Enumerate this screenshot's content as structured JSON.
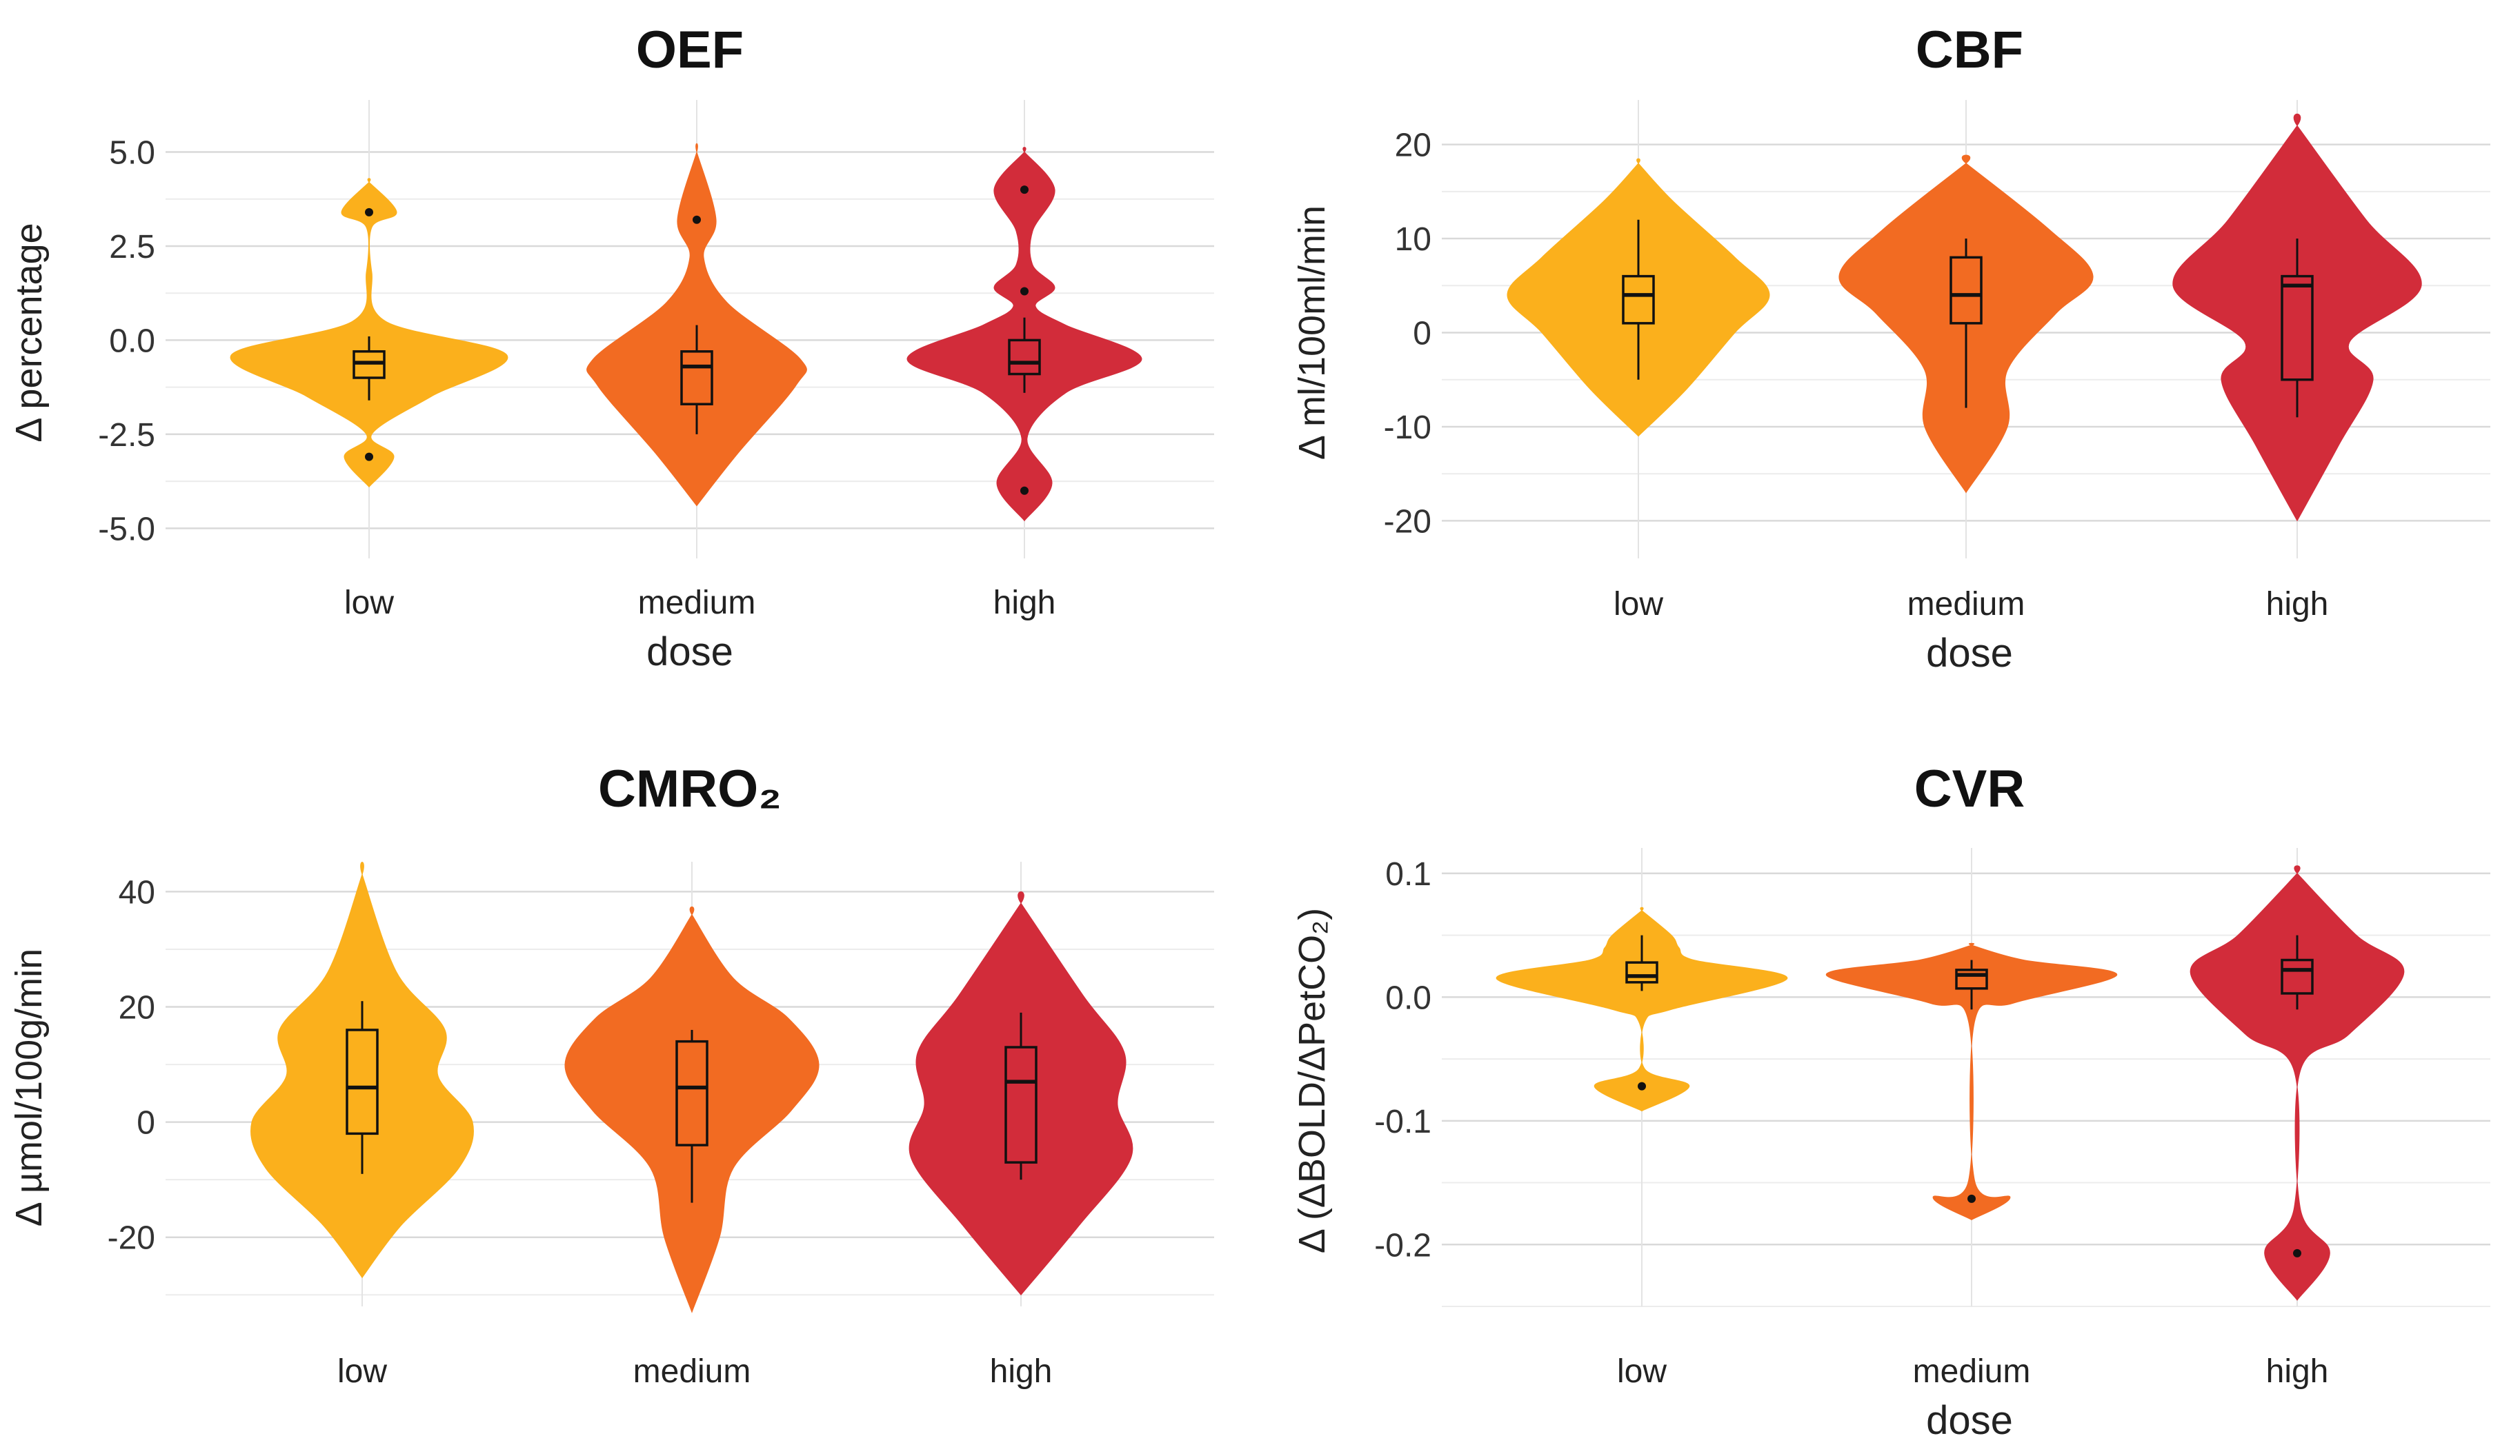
{
  "colors": {
    "low": "#FBB01C",
    "medium": "#F26B22",
    "high": "#D22C3A"
  },
  "chart_data": [
    {
      "type": "violin",
      "title": "OEF",
      "xlabel": "dose",
      "ylabel": "Δ percentage",
      "categories": [
        "low",
        "medium",
        "high"
      ],
      "ylim": [
        -5.8,
        6.2
      ],
      "yticks": [
        5.0,
        2.5,
        0.0,
        -2.5,
        -5.0
      ],
      "ytick_labels": [
        "5.0",
        "2.5",
        "0.0",
        "-2.5",
        "-5.0"
      ],
      "groups": [
        {
          "name": "low",
          "q1": -1.0,
          "median": -0.6,
          "q3": -0.3,
          "whisker_low": -1.6,
          "whisker_high": 0.1,
          "outliers": [
            3.4,
            -3.1
          ],
          "density": [
            [
              -3.9,
              0
            ],
            [
              -3.1,
              0.18
            ],
            [
              -2.5,
              0.02
            ],
            [
              -1.5,
              0.45
            ],
            [
              -0.4,
              1.0
            ],
            [
              0.5,
              0.12
            ],
            [
              1.8,
              0.02
            ],
            [
              3.0,
              0.02
            ],
            [
              3.4,
              0.2
            ],
            [
              4.2,
              0
            ]
          ]
        },
        {
          "name": "medium",
          "q1": -1.7,
          "median": -0.7,
          "q3": -0.3,
          "whisker_low": -2.5,
          "whisker_high": 0.4,
          "outliers": [
            3.2
          ],
          "density": [
            [
              -4.4,
              0
            ],
            [
              -3.0,
              0.3
            ],
            [
              -1.2,
              0.72
            ],
            [
              -0.5,
              0.75
            ],
            [
              1.0,
              0.22
            ],
            [
              2.2,
              0.05
            ],
            [
              3.2,
              0.14
            ],
            [
              5.0,
              0
            ]
          ]
        },
        {
          "name": "high",
          "q1": -0.9,
          "median": -0.6,
          "q3": 0.0,
          "whisker_low": -1.4,
          "whisker_high": 0.6,
          "outliers": [
            4.0,
            1.3,
            -4.0
          ],
          "density": [
            [
              -4.8,
              0
            ],
            [
              -3.8,
              0.2
            ],
            [
              -2.6,
              0.02
            ],
            [
              -1.4,
              0.3
            ],
            [
              -0.5,
              0.85
            ],
            [
              0.4,
              0.3
            ],
            [
              0.9,
              0.08
            ],
            [
              1.4,
              0.22
            ],
            [
              2.0,
              0.06
            ],
            [
              2.9,
              0.06
            ],
            [
              4.0,
              0.22
            ],
            [
              5.0,
              0
            ]
          ]
        }
      ]
    },
    {
      "type": "violin",
      "title": "CBF",
      "xlabel": "dose",
      "ylabel": "Δ ml/100ml/min",
      "categories": [
        "low",
        "medium",
        "high"
      ],
      "ylim": [
        -24,
        24
      ],
      "yticks": [
        20,
        10,
        0,
        -10,
        -20
      ],
      "ytick_labels": [
        "20",
        "10",
        "0",
        "-10",
        "-20"
      ],
      "groups": [
        {
          "name": "low",
          "q1": 1,
          "median": 4,
          "q3": 6,
          "whisker_low": -5,
          "whisker_high": 12,
          "outliers": [],
          "density": [
            [
              -11,
              0
            ],
            [
              -6,
              0.35
            ],
            [
              0,
              0.7
            ],
            [
              4,
              0.95
            ],
            [
              8,
              0.7
            ],
            [
              14,
              0.25
            ],
            [
              18,
              0
            ]
          ]
        },
        {
          "name": "medium",
          "q1": 1,
          "median": 4,
          "q3": 8,
          "whisker_low": -8,
          "whisker_high": 10,
          "outliers": [],
          "density": [
            [
              -17,
              0
            ],
            [
              -10,
              0.3
            ],
            [
              -4,
              0.3
            ],
            [
              2,
              0.65
            ],
            [
              6,
              0.92
            ],
            [
              11,
              0.6
            ],
            [
              18,
              0
            ]
          ]
        },
        {
          "name": "high",
          "q1": -5,
          "median": 5,
          "q3": 6,
          "whisker_low": -9,
          "whisker_high": 10,
          "outliers": [],
          "density": [
            [
              -20,
              0
            ],
            [
              -12,
              0.3
            ],
            [
              -5,
              0.55
            ],
            [
              -1,
              0.38
            ],
            [
              5,
              0.9
            ],
            [
              12,
              0.5
            ],
            [
              22,
              0
            ]
          ]
        }
      ]
    },
    {
      "type": "violin",
      "title": "CMRO₂",
      "xlabel": "",
      "ylabel": "Δ µmol/100g/min",
      "categories": [
        "low",
        "medium",
        "high"
      ],
      "ylim": [
        -32,
        44
      ],
      "yticks": [
        40,
        20,
        0,
        -20
      ],
      "ytick_labels": [
        "40",
        "20",
        "0",
        "-20"
      ],
      "groups": [
        {
          "name": "low",
          "q1": -2,
          "median": 6,
          "q3": 16,
          "whisker_low": -9,
          "whisker_high": 21,
          "outliers": [],
          "density": [
            [
              -27,
              0
            ],
            [
              -18,
              0.28
            ],
            [
              -8,
              0.7
            ],
            [
              0,
              0.8
            ],
            [
              8,
              0.55
            ],
            [
              16,
              0.6
            ],
            [
              26,
              0.25
            ],
            [
              43,
              0
            ]
          ]
        },
        {
          "name": "medium",
          "q1": -4,
          "median": 6,
          "q3": 14,
          "whisker_low": -14,
          "whisker_high": 16,
          "outliers": [],
          "density": [
            [
              -33,
              0
            ],
            [
              -20,
              0.2
            ],
            [
              -8,
              0.3
            ],
            [
              2,
              0.72
            ],
            [
              10,
              0.92
            ],
            [
              18,
              0.7
            ],
            [
              25,
              0.3
            ],
            [
              36,
              0
            ]
          ]
        },
        {
          "name": "high",
          "q1": -7,
          "median": 7,
          "q3": 13,
          "whisker_low": -10,
          "whisker_high": 19,
          "outliers": [],
          "density": [
            [
              -30,
              0
            ],
            [
              -18,
              0.42
            ],
            [
              -6,
              0.8
            ],
            [
              3,
              0.7
            ],
            [
              12,
              0.75
            ],
            [
              22,
              0.45
            ],
            [
              38,
              0
            ]
          ]
        }
      ]
    },
    {
      "type": "violin",
      "title": "CVR",
      "xlabel": "dose",
      "ylabel": "Δ (ΔBOLD/ΔPetCO₂)",
      "categories": [
        "low",
        "medium",
        "high"
      ],
      "ylim": [
        -0.25,
        0.115
      ],
      "yticks": [
        0.1,
        0.0,
        -0.1,
        -0.2
      ],
      "ytick_labels": [
        "0.1",
        "0.0",
        "-0.1",
        "-0.2"
      ],
      "groups": [
        {
          "name": "low",
          "q1": 0.012,
          "median": 0.017,
          "q3": 0.028,
          "whisker_low": 0.005,
          "whisker_high": 0.05,
          "outliers": [
            -0.072
          ],
          "density": [
            [
              -0.092,
              0
            ],
            [
              -0.072,
              0.32
            ],
            [
              -0.058,
              0.02
            ],
            [
              -0.02,
              0.02
            ],
            [
              -0.01,
              0.2
            ],
            [
              0.015,
              0.98
            ],
            [
              0.03,
              0.35
            ],
            [
              0.04,
              0.25
            ],
            [
              0.05,
              0.2
            ],
            [
              0.07,
              0
            ]
          ]
        },
        {
          "name": "medium",
          "q1": 0.007,
          "median": 0.018,
          "q3": 0.022,
          "whisker_low": -0.01,
          "whisker_high": 0.03,
          "outliers": [
            -0.163
          ],
          "density": [
            [
              -0.18,
              0
            ],
            [
              -0.162,
              0.26
            ],
            [
              -0.148,
              0.02
            ],
            [
              -0.02,
              0.02
            ],
            [
              -0.005,
              0.28
            ],
            [
              0.018,
              0.98
            ],
            [
              0.03,
              0.35
            ],
            [
              0.042,
              0
            ]
          ]
        },
        {
          "name": "high",
          "q1": 0.003,
          "median": 0.022,
          "q3": 0.03,
          "whisker_low": -0.01,
          "whisker_high": 0.05,
          "outliers": [
            -0.207
          ],
          "density": [
            [
              -0.245,
              0
            ],
            [
              -0.207,
              0.22
            ],
            [
              -0.17,
              0.02
            ],
            [
              -0.06,
              0.02
            ],
            [
              -0.03,
              0.35
            ],
            [
              0.02,
              0.72
            ],
            [
              0.05,
              0.4
            ],
            [
              0.1,
              0
            ]
          ]
        }
      ]
    }
  ]
}
